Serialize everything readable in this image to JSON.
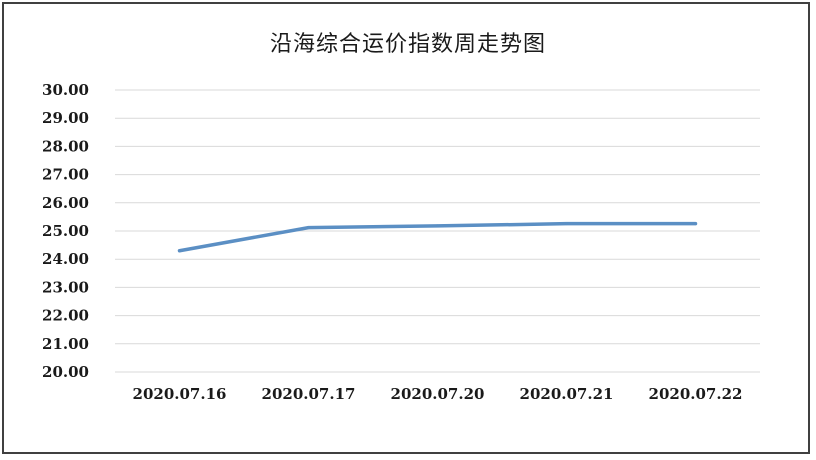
{
  "chart_data": {
    "type": "line",
    "title": "沿海综合运价指数周走势图",
    "categories": [
      "2020.07.16",
      "2020.07.17",
      "2020.07.20",
      "2020.07.21",
      "2020.07.22"
    ],
    "series": [
      {
        "values": [
          24.3,
          25.12,
          25.18,
          25.26,
          25.26
        ]
      }
    ],
    "y_ticks": [
      "20.00",
      "21.00",
      "22.00",
      "23.00",
      "24.00",
      "25.00",
      "26.00",
      "27.00",
      "28.00",
      "29.00",
      "30.00"
    ],
    "ylim": [
      20,
      30
    ],
    "grid": true,
    "line_color": "#5b8fc4",
    "grid_color": "#d9d9d9"
  }
}
